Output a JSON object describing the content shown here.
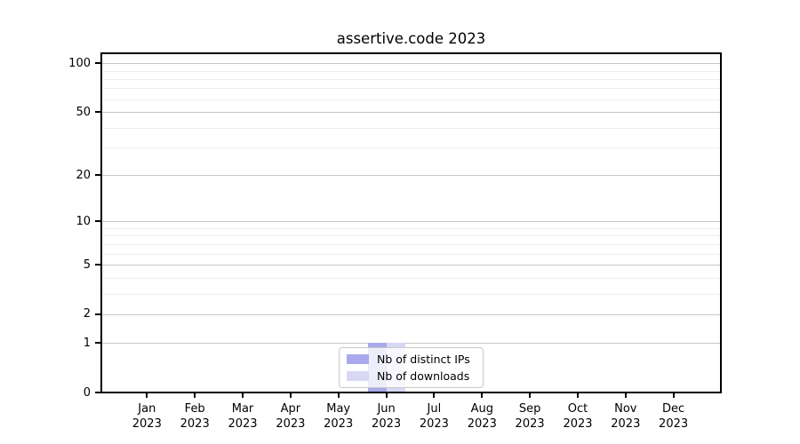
{
  "chart_data": {
    "type": "bar",
    "title": "assertive.code 2023",
    "xlabel": "",
    "ylabel": "",
    "categories": [
      {
        "line1": "Jan",
        "line2": "2023"
      },
      {
        "line1": "Feb",
        "line2": "2023"
      },
      {
        "line1": "Mar",
        "line2": "2023"
      },
      {
        "line1": "Apr",
        "line2": "2023"
      },
      {
        "line1": "May",
        "line2": "2023"
      },
      {
        "line1": "Jun",
        "line2": "2023"
      },
      {
        "line1": "Jul",
        "line2": "2023"
      },
      {
        "line1": "Aug",
        "line2": "2023"
      },
      {
        "line1": "Sep",
        "line2": "2023"
      },
      {
        "line1": "Oct",
        "line2": "2023"
      },
      {
        "line1": "Nov",
        "line2": "2023"
      },
      {
        "line1": "Dec",
        "line2": "2023"
      }
    ],
    "series": [
      {
        "name": "Nb of distinct IPs",
        "color": "#a9a9ec",
        "values": [
          0,
          0,
          0,
          0,
          0,
          1,
          0,
          0,
          0,
          0,
          0,
          0
        ]
      },
      {
        "name": "Nb of downloads",
        "color": "#d8d8f5",
        "values": [
          0,
          0,
          0,
          0,
          0,
          1,
          0,
          0,
          0,
          0,
          0,
          0
        ]
      }
    ],
    "y_axis": {
      "scale": "log1p",
      "ticks": [
        0,
        1,
        2,
        5,
        10,
        20,
        50,
        100
      ],
      "ylim": [
        0,
        115
      ],
      "minor_gridlines": [
        3,
        4,
        6,
        7,
        8,
        9,
        30,
        40,
        60,
        70,
        80,
        90
      ]
    },
    "grid": {
      "major_color": "#c6c6c6",
      "minor_color": "#eeeeee"
    },
    "legend": {
      "position": "lower center"
    }
  }
}
